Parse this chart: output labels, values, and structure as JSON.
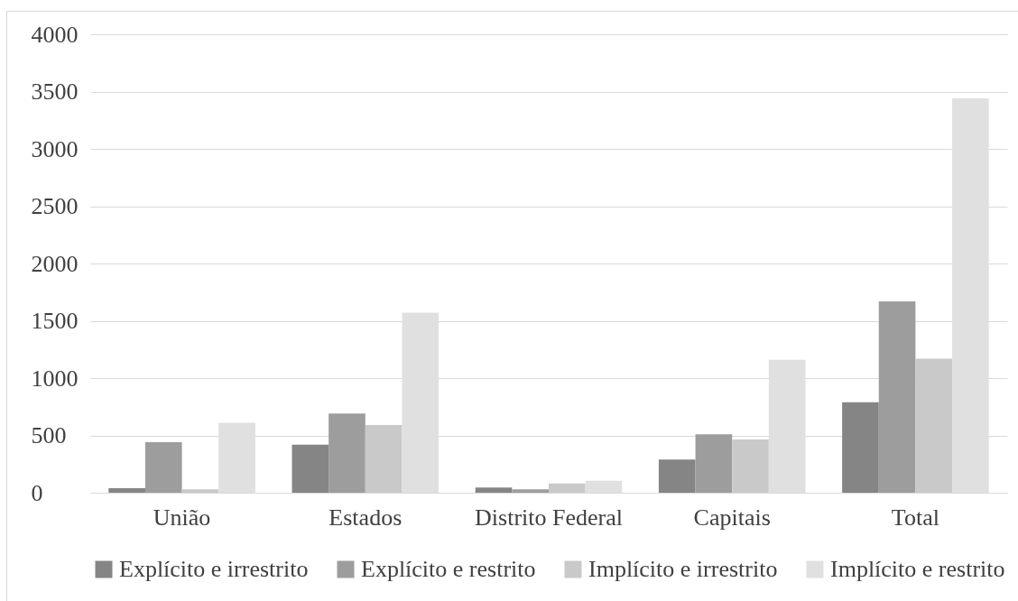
{
  "chart_data": {
    "type": "bar",
    "categories": [
      "União",
      "Estados",
      "Distrito Federal",
      "Capitais",
      "Total"
    ],
    "series": [
      {
        "name": "Explícito e irrestrito",
        "color": "#858585",
        "values": [
          40,
          420,
          45,
          290,
          790
        ]
      },
      {
        "name": "Explícito e restrito",
        "color": "#9d9d9d",
        "values": [
          440,
          690,
          30,
          510,
          1670
        ]
      },
      {
        "name": "Implícito e irrestrito",
        "color": "#c9c9c9",
        "values": [
          30,
          590,
          80,
          465,
          1170
        ]
      },
      {
        "name": "Implícito e restrito",
        "color": "#e0e0e0",
        "values": [
          610,
          1570,
          105,
          1160,
          3440
        ]
      }
    ],
    "ylim": [
      0,
      4000
    ],
    "yticks": [
      0,
      500,
      1000,
      1500,
      2000,
      2500,
      3000,
      3500,
      4000
    ],
    "grid": "y",
    "legend": "bottom"
  }
}
